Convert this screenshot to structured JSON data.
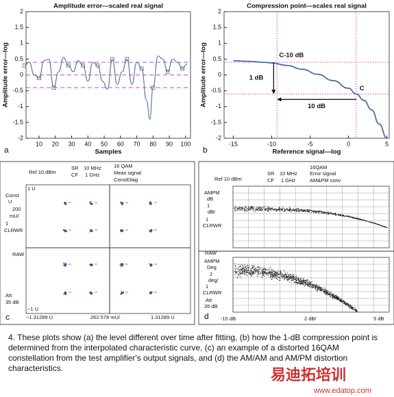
{
  "chart_data": [
    {
      "type": "line",
      "title": "Amplitude error—scaled real signal",
      "x_label": "Samples",
      "y_label": "Amplitude error—log",
      "panel_label": "a",
      "x": [
        1,
        4,
        7,
        10,
        13,
        16,
        19,
        22,
        25,
        28,
        31,
        34,
        37,
        40,
        43,
        46,
        49,
        52,
        55,
        58,
        61,
        64,
        67,
        70,
        73,
        76,
        78,
        80,
        83,
        86,
        89,
        92,
        95,
        98,
        101
      ],
      "series": [
        {
          "color": "#4a6fa5",
          "values": [
            0.3,
            0.4,
            0.0,
            -0.1,
            0.45,
            0.5,
            -0.4,
            0.1,
            0.55,
            0.3,
            0.1,
            0.45,
            0.3,
            -0.2,
            0.4,
            0.3,
            -0.2,
            -0.45,
            0.5,
            -0.3,
            0.1,
            0.5,
            -0.3,
            0.4,
            0.2,
            -0.8,
            -1.4,
            -0.4,
            0.6,
            0.5,
            0.1,
            0.5,
            0.4,
            0.2,
            0.35
          ]
        }
      ],
      "xlim": [
        2,
        103
      ],
      "xticks": [
        10,
        20,
        30,
        40,
        50,
        60,
        70,
        80,
        90,
        100
      ],
      "ylim": [
        -2,
        2
      ],
      "yticks": [
        -2,
        -1.5,
        -1,
        -0.5,
        0,
        0.5,
        1,
        1.5,
        2
      ],
      "hlines": [
        0.4,
        0,
        -0.4
      ],
      "ref_color": "#d040c0"
    },
    {
      "type": "line",
      "title": "Compression point—scales real signal",
      "x_label": "Reference signal—log",
      "y_label": "Amplitude error—log",
      "panel_label": "b",
      "x": [
        -15,
        -13,
        -11,
        -10,
        -8,
        -6,
        -4,
        -2,
        0,
        1,
        2,
        3,
        4,
        5
      ],
      "series": [
        {
          "color": "#4a6fa5",
          "values": [
            0.45,
            0.43,
            0.4,
            0.38,
            0.3,
            0.18,
            0.02,
            -0.18,
            -0.42,
            -0.6,
            -0.8,
            -1.1,
            -1.55,
            -2
          ]
        }
      ],
      "xlim": [
        -16.2,
        5.3
      ],
      "xticks": [
        -15,
        -10,
        -5,
        0,
        5
      ],
      "ylim": [
        -2,
        2
      ],
      "yticks": [
        -2,
        -1.5,
        -1,
        -0.5,
        0,
        0.5,
        1,
        1.5,
        2
      ],
      "hlines": [
        0.4,
        -0.6
      ],
      "vlines": [
        -9.3,
        1
      ],
      "ref_color": "#d040c0",
      "annotations": [
        "C-10 dB",
        "1 dB",
        "10 dB",
        "C"
      ]
    }
  ],
  "panel_c": {
    "texts": [
      "Ref 10 dBm",
      "SR",
      "CF",
      "10 MHz",
      "1 GHz",
      "16 QAM",
      "Meas signal",
      "ConstDiag",
      "1 U",
      "Const",
      "U",
      "200",
      "mU/",
      "1",
      "CLRWR",
      "RAW",
      "Att",
      "35 dB",
      "−1 U",
      "−1.31289 U",
      "262.578 mU/",
      "1.31289 U",
      "c"
    ]
  },
  "panel_d": {
    "texts": [
      "Ref 10 dBm",
      "SR",
      "CF",
      "10 MHz",
      "1 GHz",
      "16QAM",
      "Error signal",
      "AM&PM conv",
      "AMPM",
      "dB",
      "1",
      "dB/",
      "1",
      "CLRWR",
      "RAW",
      "AMPM",
      "Deg",
      "2",
      "deg/",
      "1",
      "CLRWR",
      "Att",
      "35 dB",
      "-15 dB",
      "2 dB/",
      "5 dB",
      "d"
    ]
  },
  "caption": "4. These plots show (a) the level different over time after fitting, (b) how the 1-dB compression point is determined from the interpolated characteristic curve, (c) an example of a distorted 16QAM constellation from the test amplifier's output signals, and (d) the AM/AM and AM/PM distortion characteristics.",
  "watermark": {
    "title": "易迪拓培训",
    "url": "www.edatop.com"
  }
}
